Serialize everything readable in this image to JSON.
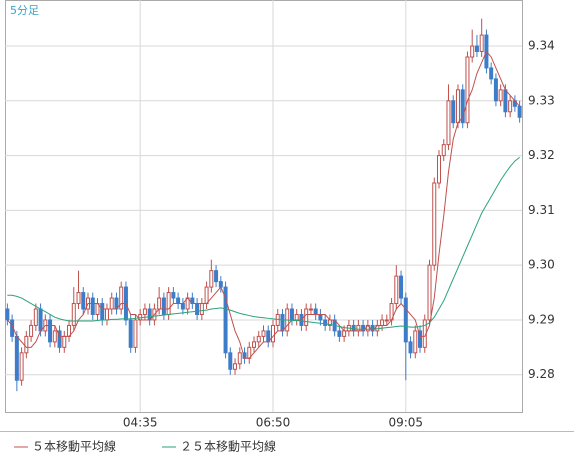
{
  "chart_data": {
    "type": "candlestick",
    "title": "5分足",
    "categories": [
      null,
      null,
      null,
      null,
      null,
      null,
      null,
      null,
      null,
      null,
      null,
      null,
      null,
      null,
      null,
      null,
      null,
      null,
      null,
      null,
      null,
      null,
      null,
      null,
      null,
      null,
      null,
      null,
      "04:35",
      null,
      null,
      null,
      null,
      null,
      null,
      null,
      null,
      null,
      null,
      null,
      null,
      null,
      null,
      null,
      null,
      null,
      null,
      null,
      null,
      null,
      null,
      null,
      null,
      null,
      null,
      null,
      "06:50",
      null,
      null,
      null,
      null,
      null,
      null,
      null,
      null,
      null,
      null,
      null,
      null,
      null,
      null,
      null,
      null,
      null,
      null,
      null,
      null,
      null,
      null,
      null,
      null,
      null,
      null,
      null,
      "09:05",
      null,
      null,
      null,
      null,
      null,
      null,
      null,
      null,
      null,
      null,
      null,
      null,
      null,
      null,
      null,
      null,
      null,
      null,
      null,
      null,
      null,
      null,
      null,
      null
    ],
    "open": [
      9.292,
      9.29,
      9.287,
      9.279,
      9.284,
      9.287,
      9.289,
      9.292,
      9.288,
      9.29,
      9.286,
      9.288,
      9.285,
      9.287,
      9.289,
      9.293,
      9.295,
      9.292,
      9.294,
      9.291,
      9.293,
      9.29,
      9.292,
      9.294,
      9.292,
      9.296,
      9.29,
      9.285,
      9.29,
      9.291,
      9.292,
      9.29,
      9.292,
      9.294,
      9.291,
      9.295,
      9.294,
      9.293,
      9.292,
      9.294,
      9.293,
      9.291,
      9.293,
      9.296,
      9.299,
      9.297,
      9.296,
      9.284,
      9.281,
      9.282,
      9.284,
      9.283,
      9.285,
      9.286,
      9.287,
      9.288,
      9.286,
      9.289,
      9.291,
      9.288,
      9.292,
      9.29,
      9.291,
      9.289,
      9.292,
      9.292,
      9.291,
      9.29,
      9.289,
      9.29,
      9.288,
      9.287,
      9.288,
      9.289,
      9.288,
      9.289,
      9.288,
      9.289,
      9.288,
      9.289,
      9.29,
      9.29,
      9.293,
      9.298,
      9.294,
      9.286,
      9.284,
      9.288,
      9.285,
      9.29,
      9.3,
      9.315,
      9.32,
      9.322,
      9.33,
      9.326,
      9.332,
      9.326,
      9.338,
      9.34,
      9.339,
      9.342,
      9.336,
      9.334,
      9.33,
      9.332,
      9.328,
      9.33,
      9.329
    ],
    "high": [
      9.293,
      9.291,
      9.288,
      9.285,
      9.288,
      9.29,
      9.293,
      9.293,
      9.291,
      9.291,
      9.289,
      9.289,
      9.288,
      9.29,
      9.296,
      9.299,
      9.296,
      9.295,
      9.295,
      9.294,
      9.294,
      9.293,
      9.295,
      9.295,
      9.297,
      9.297,
      9.291,
      9.291,
      9.292,
      9.293,
      9.293,
      9.293,
      9.296,
      9.295,
      9.296,
      9.296,
      9.295,
      9.294,
      9.295,
      9.295,
      9.294,
      9.294,
      9.297,
      9.301,
      9.3,
      9.298,
      9.297,
      9.285,
      9.283,
      9.285,
      9.285,
      9.286,
      9.287,
      9.288,
      9.289,
      9.289,
      9.29,
      9.292,
      9.292,
      9.293,
      9.293,
      9.292,
      9.292,
      9.293,
      9.293,
      9.293,
      9.292,
      9.291,
      9.291,
      9.291,
      9.289,
      9.289,
      9.29,
      9.29,
      9.29,
      9.29,
      9.29,
      9.29,
      9.29,
      9.291,
      9.291,
      9.294,
      9.3,
      9.299,
      9.295,
      9.287,
      9.289,
      9.289,
      9.291,
      9.301,
      9.316,
      9.321,
      9.323,
      9.333,
      9.331,
      9.333,
      9.333,
      9.339,
      9.343,
      9.342,
      9.345,
      9.343,
      9.337,
      9.335,
      9.333,
      9.333,
      9.331,
      9.331,
      9.33
    ],
    "low": [
      9.289,
      9.286,
      9.277,
      9.278,
      9.283,
      9.286,
      9.288,
      9.287,
      9.287,
      9.285,
      9.285,
      9.284,
      9.284,
      9.286,
      9.288,
      9.292,
      9.291,
      9.291,
      9.29,
      9.29,
      9.289,
      9.289,
      9.291,
      9.291,
      9.291,
      9.289,
      9.284,
      9.284,
      9.289,
      9.29,
      9.289,
      9.289,
      9.291,
      9.29,
      9.29,
      9.293,
      9.292,
      9.291,
      9.291,
      9.292,
      9.29,
      9.29,
      9.292,
      9.295,
      9.296,
      9.295,
      9.283,
      9.28,
      9.28,
      9.281,
      9.282,
      9.282,
      9.284,
      9.285,
      9.286,
      9.285,
      9.285,
      9.288,
      9.287,
      9.287,
      9.289,
      9.289,
      9.288,
      9.288,
      9.291,
      9.29,
      9.289,
      9.288,
      9.288,
      9.287,
      9.286,
      9.286,
      9.287,
      9.287,
      9.287,
      9.287,
      9.287,
      9.287,
      9.287,
      9.288,
      9.289,
      9.289,
      9.292,
      9.293,
      9.279,
      9.283,
      9.283,
      9.284,
      9.284,
      9.289,
      9.299,
      9.314,
      9.319,
      9.321,
      9.325,
      9.325,
      9.325,
      9.325,
      9.337,
      9.338,
      9.338,
      9.335,
      9.333,
      9.329,
      9.329,
      9.327,
      9.327,
      9.328,
      9.326
    ],
    "close": [
      9.29,
      9.287,
      9.279,
      9.284,
      9.287,
      9.289,
      9.292,
      9.288,
      9.29,
      9.286,
      9.288,
      9.285,
      9.287,
      9.289,
      9.293,
      9.295,
      9.292,
      9.294,
      9.291,
      9.293,
      9.29,
      9.292,
      9.294,
      9.292,
      9.296,
      9.29,
      9.285,
      9.29,
      9.291,
      9.292,
      9.29,
      9.292,
      9.294,
      9.291,
      9.295,
      9.294,
      9.293,
      9.292,
      9.294,
      9.293,
      9.291,
      9.293,
      9.296,
      9.299,
      9.297,
      9.296,
      9.284,
      9.281,
      9.282,
      9.284,
      9.283,
      9.285,
      9.286,
      9.287,
      9.288,
      9.286,
      9.289,
      9.291,
      9.288,
      9.292,
      9.29,
      9.291,
      9.289,
      9.292,
      9.292,
      9.291,
      9.29,
      9.289,
      9.29,
      9.288,
      9.287,
      9.288,
      9.289,
      9.288,
      9.289,
      9.288,
      9.289,
      9.288,
      9.289,
      9.29,
      9.29,
      9.293,
      9.298,
      9.294,
      9.286,
      9.284,
      9.288,
      9.285,
      9.29,
      9.3,
      9.315,
      9.32,
      9.322,
      9.33,
      9.326,
      9.332,
      9.326,
      9.338,
      9.34,
      9.339,
      9.342,
      9.336,
      9.334,
      9.33,
      9.332,
      9.328,
      9.33,
      9.329,
      9.327
    ],
    "up_color": "#c0504d",
    "down_color": "#3d7cc9",
    "series": [
      {
        "name": "５本移動平均線",
        "color": "#c0504d",
        "values": [
          9.29,
          9.289,
          9.287,
          9.286,
          9.285,
          9.285,
          9.286,
          9.288,
          9.289,
          9.289,
          9.289,
          9.287,
          9.287,
          9.287,
          9.288,
          9.29,
          9.291,
          9.293,
          9.293,
          9.293,
          9.292,
          9.292,
          9.292,
          9.292,
          9.293,
          9.293,
          9.291,
          9.291,
          9.29,
          9.29,
          9.29,
          9.291,
          9.292,
          9.292,
          9.292,
          9.293,
          9.293,
          9.293,
          9.294,
          9.293,
          9.293,
          9.293,
          9.293,
          9.294,
          9.295,
          9.296,
          9.294,
          9.291,
          9.288,
          9.286,
          9.283,
          9.283,
          9.284,
          9.285,
          9.286,
          9.286,
          9.287,
          9.288,
          9.288,
          9.289,
          9.29,
          9.29,
          9.29,
          9.291,
          9.291,
          9.291,
          9.291,
          9.291,
          9.29,
          9.29,
          9.289,
          9.288,
          9.288,
          9.288,
          9.288,
          9.288,
          9.289,
          9.288,
          9.289,
          9.289,
          9.289,
          9.29,
          9.292,
          9.293,
          9.292,
          9.291,
          9.29,
          9.287,
          9.287,
          9.289,
          9.294,
          9.302,
          9.309,
          9.317,
          9.323,
          9.326,
          9.327,
          9.33,
          9.332,
          9.335,
          9.337,
          9.339,
          9.338,
          9.336,
          9.334,
          9.332,
          9.331,
          9.33,
          9.329
        ]
      },
      {
        "name": "２５本移動平均線",
        "color": "#2aa37a",
        "values": [
          9.2945,
          9.2945,
          9.2943,
          9.294,
          9.2935,
          9.293,
          9.2925,
          9.292,
          9.2915,
          9.291,
          9.2905,
          9.2902,
          9.29,
          9.2898,
          9.2898,
          9.2898,
          9.2898,
          9.2898,
          9.2898,
          9.2899,
          9.29,
          9.29,
          9.2901,
          9.2901,
          9.2902,
          9.2902,
          9.2902,
          9.2903,
          9.2904,
          9.2905,
          9.2906,
          9.2907,
          9.2908,
          9.2909,
          9.291,
          9.2911,
          9.2912,
          9.2913,
          9.2914,
          9.2915,
          9.2916,
          9.2917,
          9.2918,
          9.292,
          9.2921,
          9.2922,
          9.292,
          9.2918,
          9.2915,
          9.2912,
          9.291,
          9.2908,
          9.2906,
          9.2905,
          9.2904,
          9.2903,
          9.2902,
          9.2901,
          9.29,
          9.29,
          9.2899,
          9.2899,
          9.2898,
          9.2897,
          9.2896,
          9.2895,
          9.2894,
          9.2893,
          9.2892,
          9.289,
          9.2888,
          9.2886,
          9.2885,
          9.2884,
          9.2883,
          9.2883,
          9.2883,
          9.2883,
          9.2884,
          9.2885,
          9.2886,
          9.2887,
          9.2888,
          9.2889,
          9.2888,
          9.2887,
          9.2887,
          9.2888,
          9.289,
          9.2895,
          9.2905,
          9.292,
          9.2935,
          9.2955,
          9.2975,
          9.2995,
          9.3015,
          9.3035,
          9.3055,
          9.3075,
          9.3095,
          9.311,
          9.3125,
          9.314,
          9.3155,
          9.3168,
          9.318,
          9.319,
          9.3197
        ]
      }
    ],
    "ylim": [
      9.2732,
      9.3484
    ],
    "yticks": [
      9.28,
      9.29,
      {
        "value": 9.3,
        "label": "9.30"
      },
      9.31,
      9.32,
      9.33,
      9.34
    ],
    "grid": true
  }
}
